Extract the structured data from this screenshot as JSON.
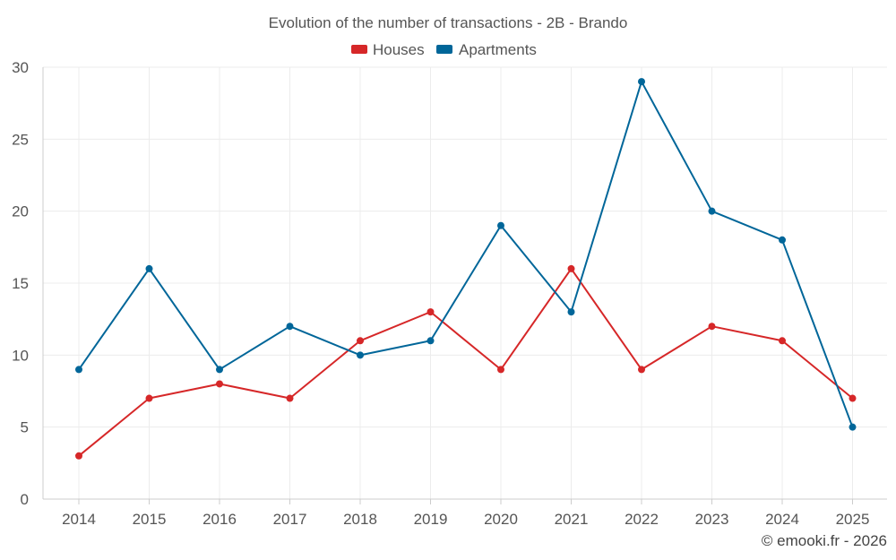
{
  "chart_data": {
    "type": "line",
    "title": "Evolution of the number of transactions - 2B - Brando",
    "categories": [
      "2014",
      "2015",
      "2016",
      "2017",
      "2018",
      "2019",
      "2020",
      "2021",
      "2022",
      "2023",
      "2024",
      "2025"
    ],
    "series": [
      {
        "name": "Houses",
        "color": "#d62728",
        "values": [
          3,
          7,
          8,
          7,
          11,
          13,
          9,
          16,
          9,
          12,
          11,
          7
        ]
      },
      {
        "name": "Apartments",
        "color": "#006699",
        "values": [
          9,
          16,
          9,
          12,
          10,
          11,
          19,
          13,
          29,
          20,
          18,
          5
        ]
      }
    ],
    "ylim": [
      0,
      30
    ],
    "yticks": [
      "0",
      "5",
      "10",
      "15",
      "20",
      "25",
      "30"
    ],
    "ytick_values": [
      0,
      5,
      10,
      15,
      20,
      25,
      30
    ],
    "xlabel": "",
    "ylabel": "",
    "grid": true,
    "legend_position": "top-center"
  },
  "credit": "© emooki.fr - 2026"
}
